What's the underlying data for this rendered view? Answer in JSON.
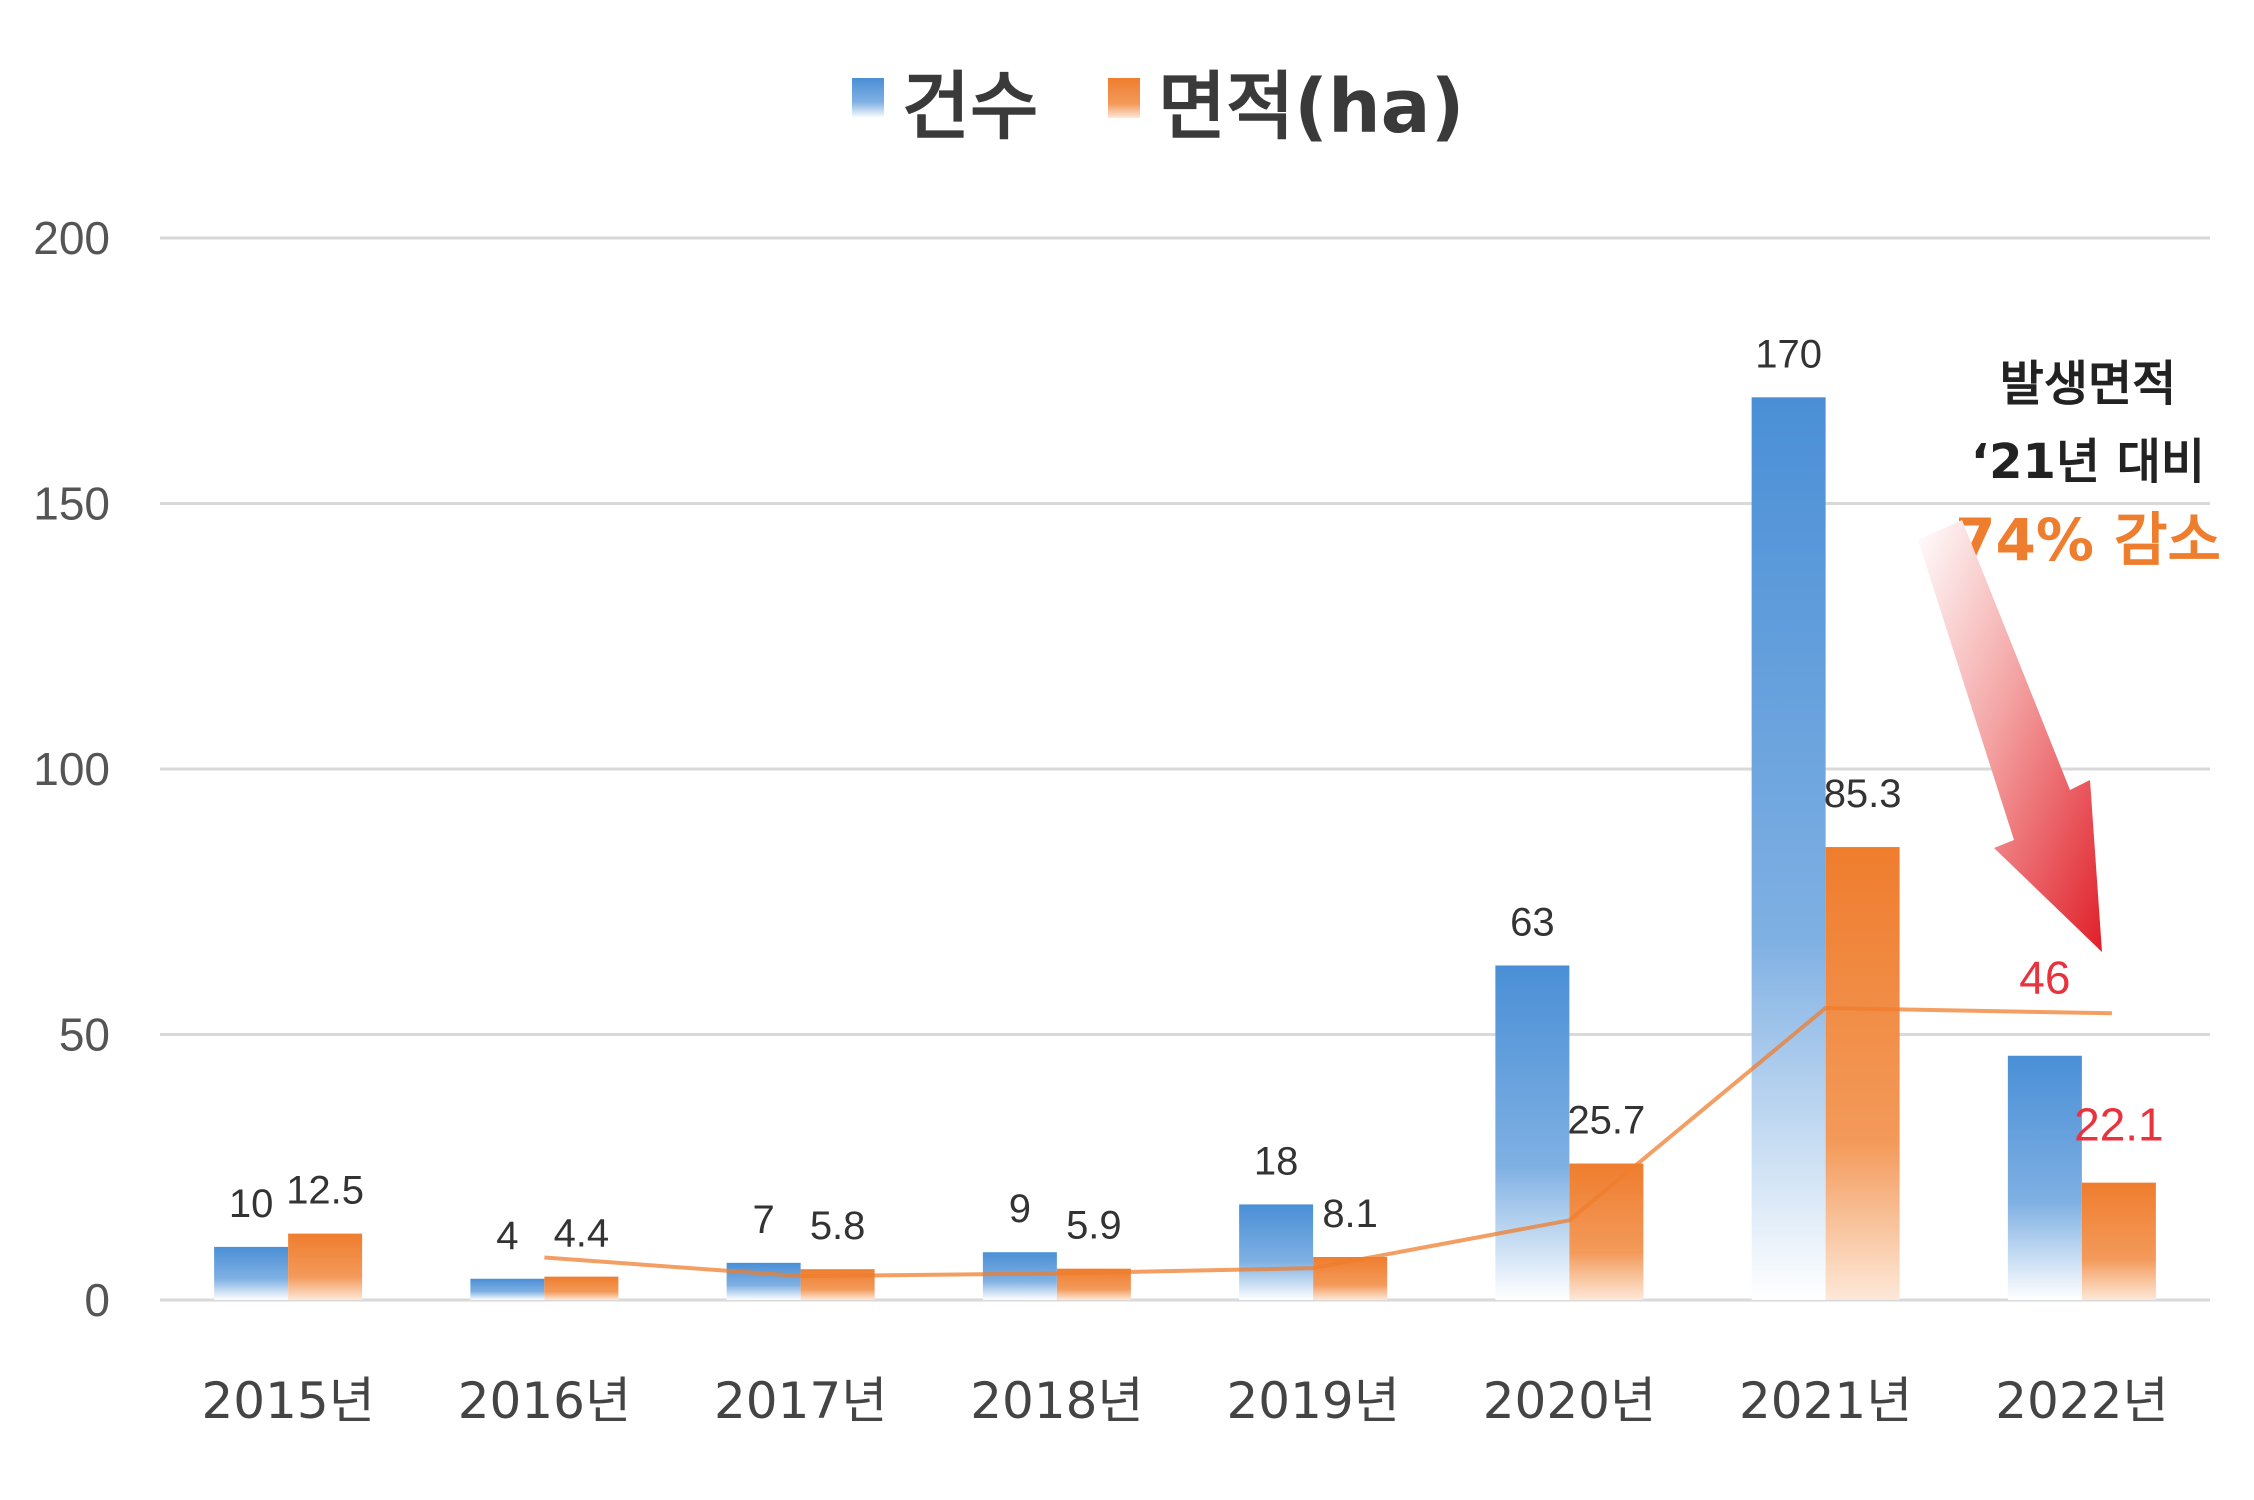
{
  "chart_data": {
    "type": "bar",
    "categories": [
      "2015년",
      "2016년",
      "2017년",
      "2018년",
      "2019년",
      "2020년",
      "2021년",
      "2022년"
    ],
    "series": [
      {
        "name": "건수",
        "color": "#4a8fd6",
        "values": [
          10,
          4,
          7,
          9,
          18,
          63,
          170,
          46
        ],
        "labels": [
          "10",
          "4",
          "7",
          "9",
          "18",
          "63",
          "170",
          "46"
        ]
      },
      {
        "name": "면적(ha)",
        "color": "#ef7d2e",
        "values": [
          12.5,
          4.4,
          5.8,
          5.9,
          8.1,
          25.7,
          85.3,
          22.1
        ],
        "labels": [
          "12.5",
          "4.4",
          "5.8",
          "5.9",
          "8.1",
          "25.7",
          "85.3",
          "22.1"
        ]
      }
    ],
    "trend_line": {
      "series": "면적(ha)",
      "color": "#ef7d2e",
      "values": [
        null,
        8,
        4.5,
        5,
        6,
        15,
        55,
        54
      ]
    },
    "highlight_color": "#e8323c",
    "highlight_category_index": 7,
    "yticks": [
      0,
      50,
      100,
      150,
      200
    ],
    "ylim": [
      0,
      200
    ],
    "legend_position": "top-center",
    "annotation": {
      "line1": "발생면적",
      "line2": "‘21년 대비",
      "line3": "74% 감소",
      "arrow_color": "#e8323c"
    }
  }
}
